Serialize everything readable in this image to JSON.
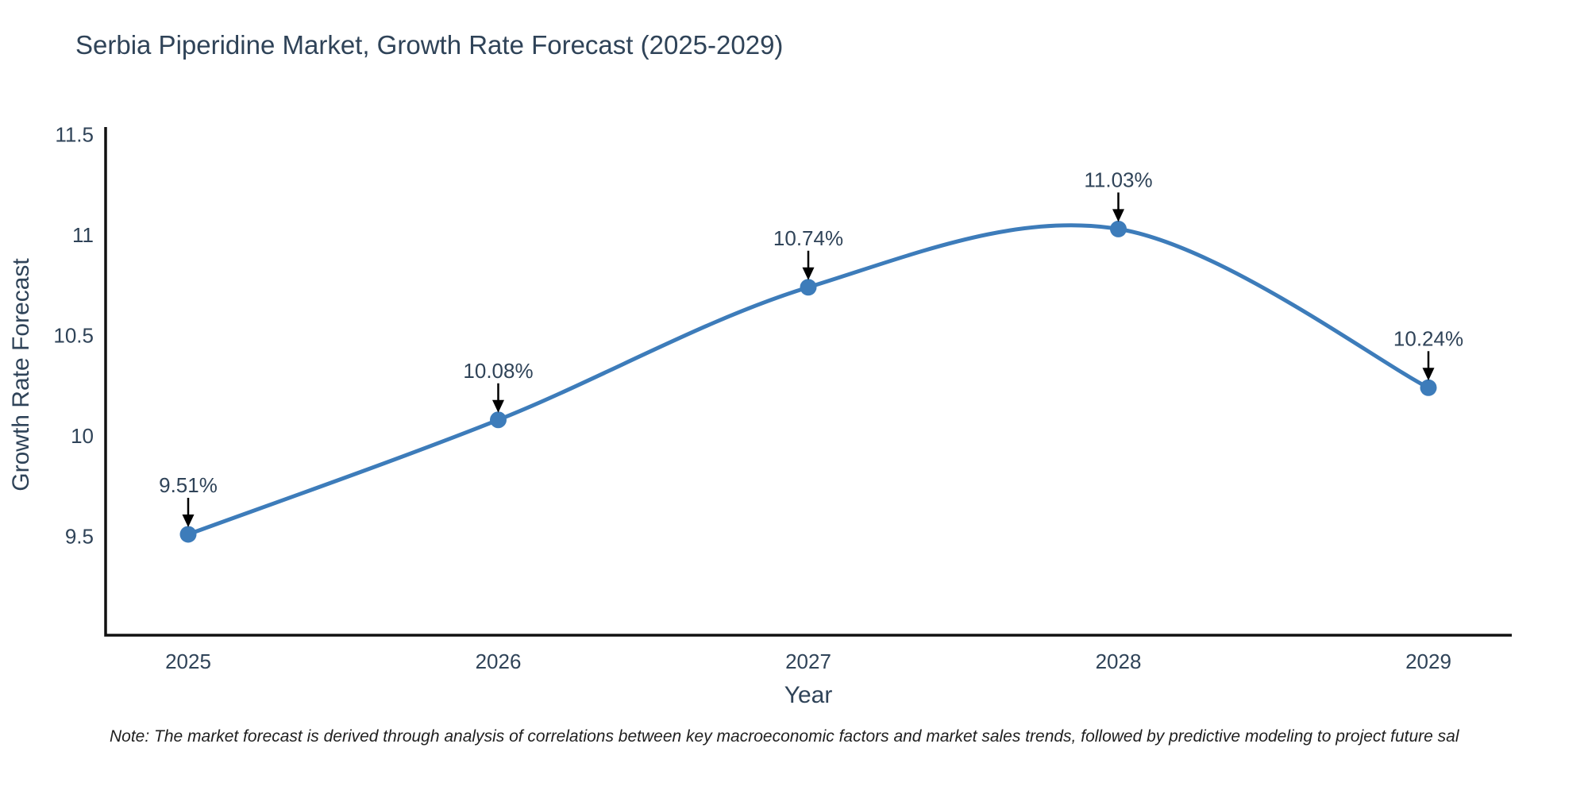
{
  "title": "Serbia Piperidine Market, Growth Rate Forecast (2025-2029)",
  "note": "Note: The market forecast is derived through analysis of correlations between key macroeconomic factors and market sales trends, followed by predictive modeling to project future sal",
  "chart_data": {
    "type": "line",
    "title": "Serbia Piperidine Market, Growth Rate Forecast (2025-2029)",
    "xlabel": "Year",
    "ylabel": "Growth Rate Forecast",
    "x": [
      2025,
      2026,
      2027,
      2028,
      2029
    ],
    "values": [
      9.51,
      10.08,
      10.74,
      11.03,
      10.24
    ],
    "point_labels": [
      "9.51%",
      "10.08%",
      "10.74%",
      "11.03%",
      "10.24%"
    ],
    "xtick_labels": [
      "2025",
      "2026",
      "2027",
      "2028",
      "2029"
    ],
    "yticks": [
      9.5,
      10,
      10.5,
      11,
      11.5
    ],
    "ytick_labels": [
      "9.5",
      "10",
      "10.5",
      "11",
      "11.5"
    ],
    "ylim": [
      9.0,
      11.55
    ],
    "line_shape": "spline",
    "grid": false,
    "legend": "none",
    "annotation_style": "value label above point with downward black arrow",
    "colors": {
      "line": "#3d7cba",
      "marker": "#3d7cba",
      "axis": "#111111",
      "plot_text": "#2f4358",
      "annotation_arrow": "#000000",
      "note_text": "#1f1f1f",
      "background": "#ffffff"
    }
  }
}
